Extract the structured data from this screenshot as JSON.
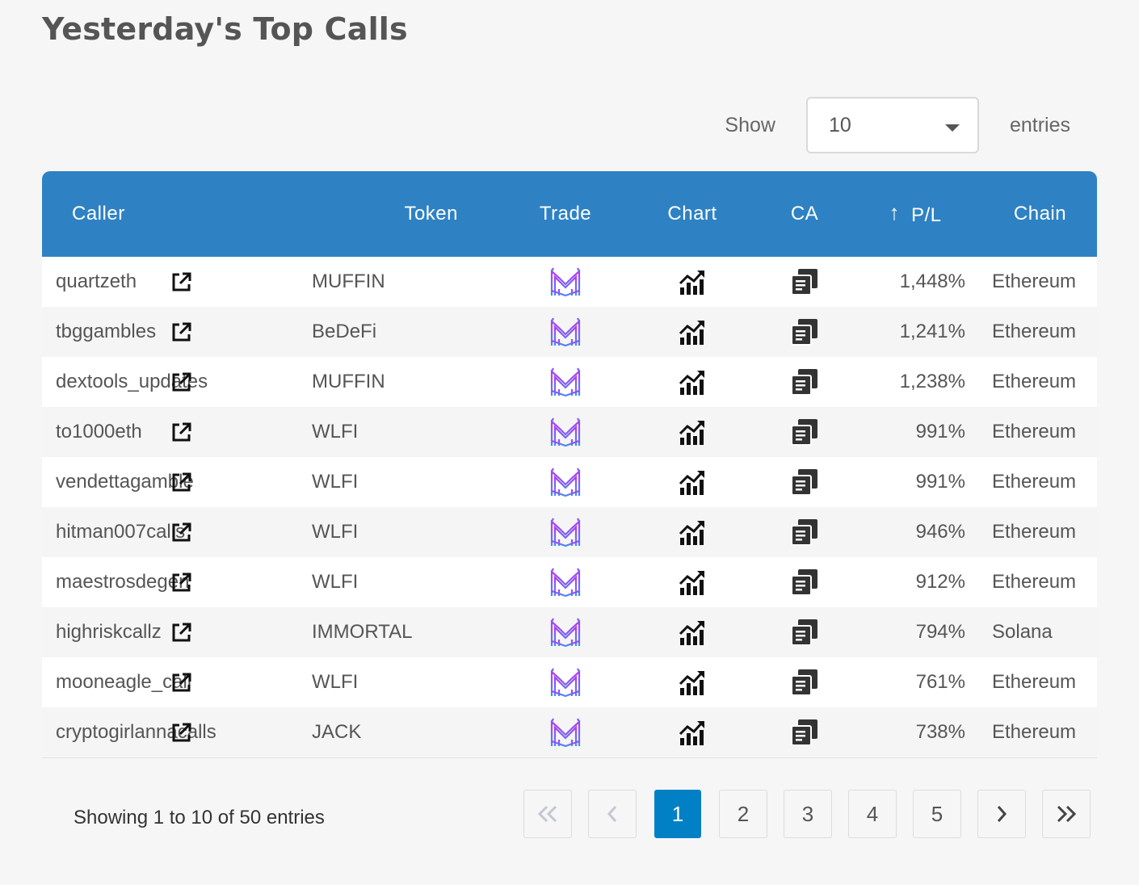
{
  "title": "Yesterday's Top Calls",
  "length": {
    "show_label": "Show",
    "value": "10",
    "entries_label": "entries"
  },
  "table": {
    "headers": {
      "caller": "Caller",
      "token": "Token",
      "trade": "Trade",
      "chart": "Chart",
      "ca": "CA",
      "pl": "P/L",
      "chain": "Chain",
      "sort_icon": "arrow-up-icon"
    },
    "rows": [
      {
        "caller": "quartzeth",
        "token": "MUFFIN",
        "pl": "1,448%",
        "chain": "Ethereum"
      },
      {
        "caller": "tbggambles",
        "token": "BeDeFi",
        "pl": "1,241%",
        "chain": "Ethereum"
      },
      {
        "caller": "dextools_updates",
        "token": "MUFFIN",
        "pl": "1,238%",
        "chain": "Ethereum"
      },
      {
        "caller": "to1000eth",
        "token": "WLFI",
        "pl": "991%",
        "chain": "Ethereum"
      },
      {
        "caller": "vendettagamble",
        "token": "WLFI",
        "pl": "991%",
        "chain": "Ethereum"
      },
      {
        "caller": "hitman007calls",
        "token": "WLFI",
        "pl": "946%",
        "chain": "Ethereum"
      },
      {
        "caller": "maestrosdegen",
        "token": "WLFI",
        "pl": "912%",
        "chain": "Ethereum"
      },
      {
        "caller": "highriskcallz",
        "token": "IMMORTAL",
        "pl": "794%",
        "chain": "Solana"
      },
      {
        "caller": "mooneagle_call",
        "token": "WLFI",
        "pl": "761%",
        "chain": "Ethereum"
      },
      {
        "caller": "cryptogirlannacalls",
        "token": "JACK",
        "pl": "738%",
        "chain": "Ethereum"
      }
    ]
  },
  "info": "Showing 1 to 10 of 50 entries",
  "pagination": {
    "pages": [
      "1",
      "2",
      "3",
      "4",
      "5"
    ],
    "active": "1",
    "first_icon": "double-chevron-left-icon",
    "prev_icon": "chevron-left-icon",
    "next_icon": "chevron-right-icon",
    "last_icon": "double-chevron-right-icon"
  },
  "colors": {
    "header_bg": "#2e82c3",
    "active_page": "#0280c5",
    "trade_icon_gradient": [
      "#b23cf0",
      "#3f8ef5"
    ]
  },
  "icons": {
    "external_link": "external-link-icon",
    "trade": "trade-logo-icon",
    "chart": "chart-icon",
    "ca": "copy-icon"
  }
}
